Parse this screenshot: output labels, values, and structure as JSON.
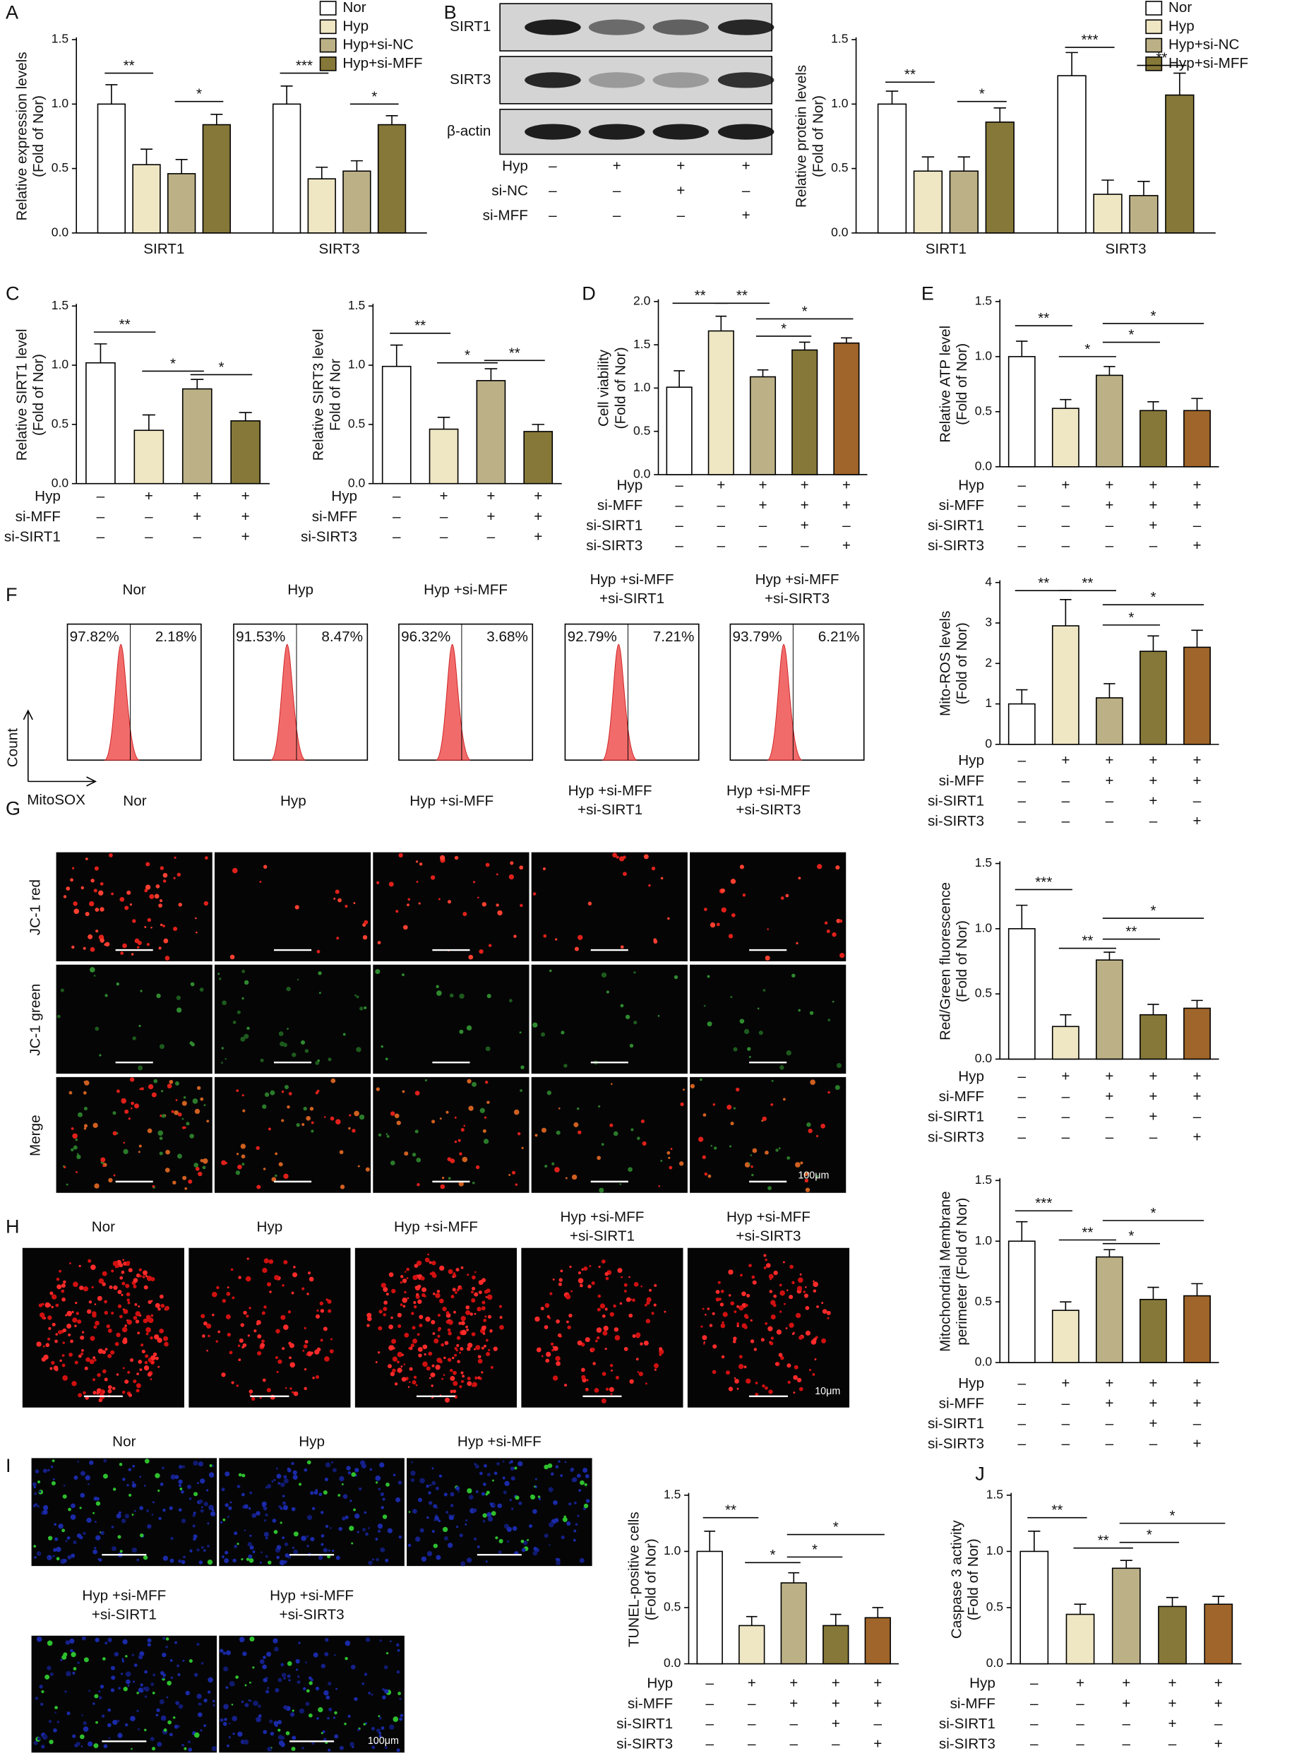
{
  "panels": [
    "A",
    "B",
    "C",
    "D",
    "E",
    "F",
    "G",
    "H",
    "I",
    "J"
  ],
  "blot": {
    "rows": [
      "SIRT1",
      "SIRT3",
      "β-actin"
    ],
    "conditions": [
      {
        "name": "Hyp",
        "signs": [
          "–",
          "+",
          "+",
          "+"
        ]
      },
      {
        "name": "si-NC",
        "signs": [
          "–",
          "–",
          "+",
          "–"
        ]
      },
      {
        "name": "si-MFF",
        "signs": [
          "–",
          "–",
          "–",
          "+"
        ]
      }
    ]
  },
  "flow": {
    "ylabel": "Count",
    "xlabel": "MitoSOX",
    "plots": [
      {
        "title": [
          "Nor"
        ],
        "left": "97.82%",
        "right": "2.18%"
      },
      {
        "title": [
          "Hyp"
        ],
        "left": "91.53%",
        "right": "8.47%"
      },
      {
        "title": [
          "Hyp +si-MFF"
        ],
        "left": "96.32%",
        "right": "3.68%"
      },
      {
        "title": [
          "Hyp +si-MFF",
          "+si-SIRT1"
        ],
        "left": "92.79%",
        "right": "7.21%"
      },
      {
        "title": [
          "Hyp +si-MFF",
          "+si-SIRT3"
        ],
        "left": "93.79%",
        "right": "6.21%"
      }
    ]
  },
  "jc1": {
    "titles": [
      [
        "Nor"
      ],
      [
        "Hyp"
      ],
      [
        "Hyp +si-MFF"
      ],
      [
        "Hyp +si-MFF",
        "+si-SIRT1"
      ],
      [
        "Hyp +si-MFF",
        "+si-SIRT3"
      ]
    ],
    "rows": [
      "JC-1 red",
      "JC-1 green",
      "Merge"
    ],
    "scale": "100μm"
  },
  "mito": {
    "titles": [
      [
        "Nor"
      ],
      [
        "Hyp"
      ],
      [
        "Hyp +si-MFF"
      ],
      [
        "Hyp +si-MFF",
        "+si-SIRT1"
      ],
      [
        "Hyp +si-MFF",
        "+si-SIRT3"
      ]
    ],
    "scale": "10μm"
  },
  "tunel": {
    "titles": [
      [
        "Nor"
      ],
      [
        "Hyp"
      ],
      [
        "Hyp +si-MFF"
      ],
      [
        "Hyp +si-MFF",
        "+si-SIRT1"
      ],
      [
        "Hyp +si-MFF",
        "+si-SIRT3"
      ]
    ],
    "scale": "100μm"
  },
  "chart_data": [
    {
      "type": "bar",
      "ylabel": [
        "Relative expression levels",
        "(Fold of Nor)"
      ],
      "categories": [
        "SIRT1",
        "SIRT3"
      ],
      "series": [
        {
          "name": "Nor",
          "color": "#ffffff",
          "values": [
            1.0,
            1.0
          ],
          "errors": [
            0.15,
            0.14
          ]
        },
        {
          "name": "Hyp",
          "color": "#efe6c3",
          "values": [
            0.53,
            0.42
          ],
          "errors": [
            0.12,
            0.09
          ]
        },
        {
          "name": "Hyp+si-NC",
          "color": "#bcb186",
          "values": [
            0.46,
            0.48
          ],
          "errors": [
            0.11,
            0.08
          ]
        },
        {
          "name": "Hyp+si-MFF",
          "color": "#867838",
          "values": [
            0.84,
            0.84
          ],
          "errors": [
            0.08,
            0.07
          ]
        }
      ],
      "ylim": [
        0,
        1.5
      ],
      "yticks": [
        {
          "value": 0,
          "label": "0.0"
        },
        0.5,
        {
          "value": 1,
          "label": "1.0"
        },
        1.5
      ],
      "annotations": [
        "**",
        "*",
        "***",
        "*"
      ]
    },
    {
      "type": "bar",
      "ylabel": [
        "Relative protein levels",
        "(Fold of Nor)"
      ],
      "categories": [
        "SIRT1",
        "SIRT3"
      ],
      "series": [
        {
          "name": "Nor",
          "color": "#ffffff",
          "values": [
            1.0,
            1.22
          ],
          "errors": [
            0.1,
            0.18
          ]
        },
        {
          "name": "Hyp",
          "color": "#efe6c3",
          "values": [
            0.48,
            0.3
          ],
          "errors": [
            0.11,
            0.11
          ]
        },
        {
          "name": "Hyp+si-NC",
          "color": "#bcb186",
          "values": [
            0.48,
            0.29
          ],
          "errors": [
            0.11,
            0.11
          ]
        },
        {
          "name": "Hyp+si-MFF",
          "color": "#867838",
          "values": [
            0.86,
            1.07
          ],
          "errors": [
            0.11,
            0.17
          ]
        }
      ],
      "ylim": [
        0,
        1.5
      ],
      "yticks": [
        {
          "value": 0,
          "label": "0.0"
        },
        0.5,
        {
          "value": 1,
          "label": "1.0"
        },
        1.5
      ],
      "annotations": [
        "**",
        "*",
        "***",
        "**"
      ]
    },
    {
      "type": "bar",
      "ylabel": [
        "Relative SIRT1 level",
        "(Fold of Nor)"
      ],
      "values": [
        1.02,
        0.45,
        0.8,
        0.53
      ],
      "errors": [
        0.16,
        0.13,
        0.08,
        0.07
      ],
      "colors": [
        "#ffffff",
        "#efe6c3",
        "#bcb186",
        "#867838"
      ],
      "ylim": [
        0,
        1.5
      ],
      "yticks": [
        {
          "value": 0,
          "label": "0.0"
        },
        0.5,
        {
          "value": 1,
          "label": "1.0"
        },
        1.5
      ],
      "conditions": [
        {
          "name": "Hyp",
          "signs": [
            "–",
            "+",
            "+",
            "+"
          ]
        },
        {
          "name": "si-MFF",
          "signs": [
            "–",
            "–",
            "+",
            "+"
          ]
        },
        {
          "name": "si-SIRT1",
          "signs": [
            "–",
            "–",
            "–",
            "+"
          ]
        }
      ],
      "annotations": [
        "**",
        "*",
        "*"
      ]
    },
    {
      "type": "bar",
      "ylabel": [
        "Relative SIRT3 level",
        "Fold of Nor"
      ],
      "values": [
        0.99,
        0.46,
        0.87,
        0.44
      ],
      "errors": [
        0.18,
        0.1,
        0.1,
        0.06
      ],
      "colors": [
        "#ffffff",
        "#efe6c3",
        "#bcb186",
        "#867838"
      ],
      "ylim": [
        0,
        1.5
      ],
      "yticks": [
        {
          "value": 0,
          "label": "0.0"
        },
        0.5,
        {
          "value": 1,
          "label": "1.0"
        },
        1.5
      ],
      "conditions": [
        {
          "name": "Hyp",
          "signs": [
            "–",
            "+",
            "+",
            "+"
          ]
        },
        {
          "name": "si-MFF",
          "signs": [
            "–",
            "–",
            "+",
            "+"
          ]
        },
        {
          "name": "si-SIRT3",
          "signs": [
            "–",
            "–",
            "–",
            "+"
          ]
        }
      ],
      "annotations": [
        "**",
        "*",
        "**"
      ]
    },
    {
      "type": "bar",
      "ylabel": [
        "Cell viability",
        "(Fold of Nor)"
      ],
      "values": [
        1.01,
        1.66,
        1.13,
        1.44,
        1.52
      ],
      "errors": [
        0.19,
        0.17,
        0.08,
        0.09,
        0.06
      ],
      "colors": [
        "#ffffff",
        "#efe6c3",
        "#bcb186",
        "#867838",
        "#a0652a"
      ],
      "ylim": [
        0,
        2
      ],
      "yticks": [
        {
          "value": 0,
          "label": "0.0"
        },
        0.5,
        {
          "value": 1,
          "label": "1.0"
        },
        1.5,
        {
          "value": 2,
          "label": "2.0"
        }
      ],
      "conditions": [
        {
          "name": "Hyp",
          "signs": [
            "–",
            "+",
            "+",
            "+",
            "+"
          ]
        },
        {
          "name": "si-MFF",
          "signs": [
            "–",
            "–",
            "+",
            "+",
            "+"
          ]
        },
        {
          "name": "si-SIRT1",
          "signs": [
            "–",
            "–",
            "–",
            "+",
            "–"
          ]
        },
        {
          "name": "si-SIRT3",
          "signs": [
            "–",
            "–",
            "–",
            "–",
            "+"
          ]
        }
      ],
      "annotations": [
        "**",
        "**",
        "*",
        "*"
      ]
    },
    {
      "type": "bar",
      "ylabel": [
        "Relative ATP level",
        "(Fold of Nor)"
      ],
      "values": [
        1.0,
        0.53,
        0.83,
        0.51,
        0.51
      ],
      "errors": [
        0.14,
        0.08,
        0.08,
        0.08,
        0.11
      ],
      "colors": [
        "#ffffff",
        "#efe6c3",
        "#bcb186",
        "#867838",
        "#a0652a"
      ],
      "ylim": [
        0,
        1.5
      ],
      "yticks": [
        {
          "value": 0,
          "label": "0.0"
        },
        0.5,
        {
          "value": 1,
          "label": "1.0"
        },
        1.5
      ],
      "conditions": [
        {
          "name": "Hyp",
          "signs": [
            "–",
            "+",
            "+",
            "+",
            "+"
          ]
        },
        {
          "name": "si-MFF",
          "signs": [
            "–",
            "–",
            "+",
            "+",
            "+"
          ]
        },
        {
          "name": "si-SIRT1",
          "signs": [
            "–",
            "–",
            "–",
            "+",
            "–"
          ]
        },
        {
          "name": "si-SIRT3",
          "signs": [
            "–",
            "–",
            "–",
            "–",
            "+"
          ]
        }
      ],
      "annotations": [
        "**",
        "*",
        "*",
        "*"
      ]
    },
    {
      "type": "bar",
      "ylabel": [
        "Mito-ROS levels",
        "(Fold of Nor)"
      ],
      "values": [
        1.0,
        2.93,
        1.15,
        2.3,
        2.4
      ],
      "errors": [
        0.35,
        0.65,
        0.35,
        0.38,
        0.42
      ],
      "colors": [
        "#ffffff",
        "#efe6c3",
        "#bcb186",
        "#867838",
        "#a0652a"
      ],
      "ylim": [
        0,
        4
      ],
      "yticks": [
        0,
        1,
        2,
        3,
        4
      ],
      "conditions": [
        {
          "name": "Hyp",
          "signs": [
            "–",
            "+",
            "+",
            "+",
            "+"
          ]
        },
        {
          "name": "si-MFF",
          "signs": [
            "–",
            "–",
            "+",
            "+",
            "+"
          ]
        },
        {
          "name": "si-SIRT1",
          "signs": [
            "–",
            "–",
            "–",
            "+",
            "–"
          ]
        },
        {
          "name": "si-SIRT3",
          "signs": [
            "–",
            "–",
            "–",
            "–",
            "+"
          ]
        }
      ],
      "annotations": [
        "**",
        "**",
        "*",
        "*"
      ]
    },
    {
      "type": "bar",
      "ylabel": [
        "Red/Green fluorescence",
        "(Fold of Nor)"
      ],
      "values": [
        1.0,
        0.25,
        0.76,
        0.34,
        0.39
      ],
      "errors": [
        0.18,
        0.09,
        0.06,
        0.08,
        0.06
      ],
      "colors": [
        "#ffffff",
        "#efe6c3",
        "#bcb186",
        "#867838",
        "#a0652a"
      ],
      "ylim": [
        0,
        1.5
      ],
      "yticks": [
        {
          "value": 0,
          "label": "0.0"
        },
        0.5,
        {
          "value": 1,
          "label": "1.0"
        },
        1.5
      ],
      "conditions": [
        {
          "name": "Hyp",
          "signs": [
            "–",
            "+",
            "+",
            "+",
            "+"
          ]
        },
        {
          "name": "si-MFF",
          "signs": [
            "–",
            "–",
            "+",
            "+",
            "+"
          ]
        },
        {
          "name": "si-SIRT1",
          "signs": [
            "–",
            "–",
            "–",
            "+",
            "–"
          ]
        },
        {
          "name": "si-SIRT3",
          "signs": [
            "–",
            "–",
            "–",
            "–",
            "+"
          ]
        }
      ],
      "annotations": [
        "***",
        "**",
        "**",
        "*"
      ]
    },
    {
      "type": "bar",
      "ylabel": [
        "Mitochondrial Membrane",
        "perimeter (Fold of Nor)"
      ],
      "values": [
        1.0,
        0.43,
        0.87,
        0.52,
        0.55
      ],
      "errors": [
        0.16,
        0.07,
        0.06,
        0.1,
        0.1
      ],
      "colors": [
        "#ffffff",
        "#efe6c3",
        "#bcb186",
        "#867838",
        "#a0652a"
      ],
      "ylim": [
        0,
        1.5
      ],
      "yticks": [
        {
          "value": 0,
          "label": "0.0"
        },
        0.5,
        {
          "value": 1,
          "label": "1.0"
        },
        1.5
      ],
      "conditions": [
        {
          "name": "Hyp",
          "signs": [
            "–",
            "+",
            "+",
            "+",
            "+"
          ]
        },
        {
          "name": "si-MFF",
          "signs": [
            "–",
            "–",
            "+",
            "+",
            "+"
          ]
        },
        {
          "name": "si-SIRT1",
          "signs": [
            "–",
            "–",
            "–",
            "+",
            "–"
          ]
        },
        {
          "name": "si-SIRT3",
          "signs": [
            "–",
            "–",
            "–",
            "–",
            "+"
          ]
        }
      ],
      "annotations": [
        "***",
        "**",
        "*",
        "*"
      ]
    },
    {
      "type": "bar",
      "ylabel": [
        "TUNEL-positive cells",
        "(Fold of Nor)"
      ],
      "values": [
        1.0,
        0.34,
        0.72,
        0.34,
        0.41
      ],
      "errors": [
        0.18,
        0.08,
        0.09,
        0.1,
        0.09
      ],
      "colors": [
        "#ffffff",
        "#efe6c3",
        "#bcb186",
        "#867838",
        "#a0652a"
      ],
      "ylim": [
        0,
        1.5
      ],
      "yticks": [
        {
          "value": 0,
          "label": "0.0"
        },
        0.5,
        {
          "value": 1,
          "label": "1.0"
        },
        1.5
      ],
      "conditions": [
        {
          "name": "Hyp",
          "signs": [
            "–",
            "+",
            "+",
            "+",
            "+"
          ]
        },
        {
          "name": "si-MFF",
          "signs": [
            "–",
            "–",
            "+",
            "+",
            "+"
          ]
        },
        {
          "name": "si-SIRT1",
          "signs": [
            "–",
            "–",
            "–",
            "+",
            "–"
          ]
        },
        {
          "name": "si-SIRT3",
          "signs": [
            "–",
            "–",
            "–",
            "–",
            "+"
          ]
        }
      ],
      "annotations": [
        "**",
        "*",
        "*",
        "*"
      ]
    },
    {
      "type": "bar",
      "ylabel": [
        "Caspase 3 activity",
        "(Fold of Nor)"
      ],
      "values": [
        1.0,
        0.44,
        0.85,
        0.51,
        0.53
      ],
      "errors": [
        0.18,
        0.09,
        0.07,
        0.08,
        0.07
      ],
      "colors": [
        "#ffffff",
        "#efe6c3",
        "#bcb186",
        "#867838",
        "#a0652a"
      ],
      "ylim": [
        0,
        1.5
      ],
      "yticks": [
        {
          "value": 0,
          "label": "0.0"
        },
        0.5,
        {
          "value": 1,
          "label": "1.0"
        },
        1.5
      ],
      "conditions": [
        {
          "name": "Hyp",
          "signs": [
            "–",
            "+",
            "+",
            "+",
            "+"
          ]
        },
        {
          "name": "si-MFF",
          "signs": [
            "–",
            "–",
            "+",
            "+",
            "+"
          ]
        },
        {
          "name": "si-SIRT1",
          "signs": [
            "–",
            "–",
            "–",
            "+",
            "–"
          ]
        },
        {
          "name": "si-SIRT3",
          "signs": [
            "–",
            "–",
            "–",
            "–",
            "+"
          ]
        }
      ],
      "annotations": [
        "**",
        "**",
        "*",
        "*"
      ]
    }
  ]
}
